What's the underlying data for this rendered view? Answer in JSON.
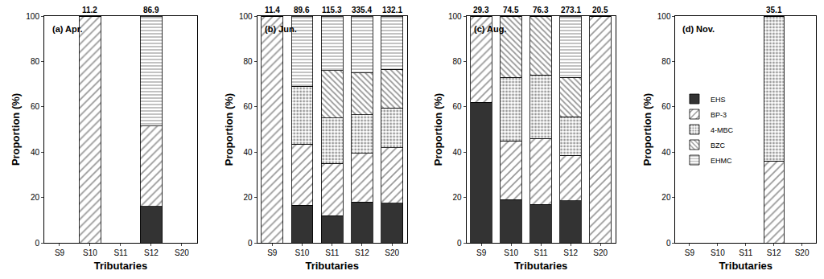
{
  "chart_data": [
    {
      "type": "bar",
      "stacked": true,
      "title": "(a) Apr.",
      "x_label": "Tributaries",
      "y_label": "Proportion (%)",
      "categories": [
        "S9",
        "S10",
        "S11",
        "S12",
        "S20"
      ],
      "ylim": [
        0,
        100
      ],
      "yticks": [
        0,
        20,
        40,
        60,
        80,
        100
      ],
      "series": [
        {
          "name": "EHS",
          "color": "#333333",
          "marker": "solid",
          "values": [
            0,
            0,
            0,
            16,
            0
          ]
        },
        {
          "name": "BP-3",
          "color": "#333333",
          "marker": "forward-hatch",
          "values": [
            0,
            100,
            0,
            35.5,
            0
          ]
        },
        {
          "name": "4-MBC",
          "color": "#333333",
          "marker": "dots",
          "values": [
            0,
            0,
            0,
            0,
            0
          ]
        },
        {
          "name": "BZC",
          "color": "#333333",
          "marker": "back-hatch",
          "values": [
            0,
            0,
            0,
            0,
            0
          ]
        },
        {
          "name": "EHMC",
          "color": "#333333",
          "marker": "horizontal-lines",
          "values": [
            0,
            0,
            0,
            48.5,
            0
          ]
        }
      ],
      "totals": [
        null,
        11.2,
        null,
        86.9,
        null
      ]
    },
    {
      "type": "bar",
      "stacked": true,
      "title": "(b) Jun.",
      "x_label": "Tributaries",
      "y_label": "Proportion (%)",
      "categories": [
        "S9",
        "S10",
        "S11",
        "S12",
        "S20"
      ],
      "ylim": [
        0,
        100
      ],
      "yticks": [
        0,
        20,
        40,
        60,
        80,
        100
      ],
      "series": [
        {
          "name": "EHS",
          "color": "#333333",
          "marker": "solid",
          "values": [
            0,
            16.5,
            12,
            18,
            17.5
          ]
        },
        {
          "name": "BP-3",
          "color": "#333333",
          "marker": "forward-hatch",
          "values": [
            100,
            27,
            23,
            21.5,
            24.5
          ]
        },
        {
          "name": "4-MBC",
          "color": "#333333",
          "marker": "dots",
          "values": [
            0,
            25.5,
            20,
            17,
            17.5
          ]
        },
        {
          "name": "BZC",
          "color": "#333333",
          "marker": "back-hatch",
          "values": [
            0,
            0,
            21,
            18.5,
            17
          ]
        },
        {
          "name": "EHMC",
          "color": "#333333",
          "marker": "horizontal-lines",
          "values": [
            0,
            31,
            24,
            25,
            23.5
          ]
        }
      ],
      "totals": [
        11.4,
        89.6,
        115.3,
        335.4,
        132.1
      ]
    },
    {
      "type": "bar",
      "stacked": true,
      "title": "(c) Aug.",
      "x_label": "Tributaries",
      "y_label": "Proportion (%)",
      "categories": [
        "S9",
        "S10",
        "S11",
        "S12",
        "S20"
      ],
      "ylim": [
        0,
        100
      ],
      "yticks": [
        0,
        20,
        40,
        60,
        80,
        100
      ],
      "series": [
        {
          "name": "EHS",
          "color": "#333333",
          "marker": "solid",
          "values": [
            62,
            19,
            17,
            18.5,
            0
          ]
        },
        {
          "name": "BP-3",
          "color": "#333333",
          "marker": "forward-hatch",
          "values": [
            38,
            26,
            29,
            20,
            100
          ]
        },
        {
          "name": "4-MBC",
          "color": "#333333",
          "marker": "dots",
          "values": [
            0,
            28,
            28,
            17,
            0
          ]
        },
        {
          "name": "BZC",
          "color": "#333333",
          "marker": "back-hatch",
          "values": [
            0,
            27,
            26,
            17.5,
            0
          ]
        },
        {
          "name": "EHMC",
          "color": "#333333",
          "marker": "horizontal-lines",
          "values": [
            0,
            0,
            0,
            27,
            0
          ]
        }
      ],
      "totals": [
        29.3,
        74.5,
        76.3,
        273.1,
        20.5
      ]
    },
    {
      "type": "bar",
      "stacked": true,
      "title": "(d) Nov.",
      "x_label": "Tributaries",
      "y_label": "Proportion (%)",
      "categories": [
        "S9",
        "S10",
        "S11",
        "S12",
        "S20"
      ],
      "ylim": [
        0,
        100
      ],
      "yticks": [
        0,
        20,
        40,
        60,
        80,
        100
      ],
      "legend": "left",
      "series": [
        {
          "name": "EHS",
          "color": "#333333",
          "marker": "solid",
          "values": [
            0,
            0,
            0,
            0,
            0
          ]
        },
        {
          "name": "BP-3",
          "color": "#333333",
          "marker": "forward-hatch",
          "values": [
            0,
            0,
            0,
            36,
            0
          ]
        },
        {
          "name": "4-MBC",
          "color": "#333333",
          "marker": "dots",
          "values": [
            0,
            0,
            0,
            64,
            0
          ]
        },
        {
          "name": "BZC",
          "color": "#333333",
          "marker": "back-hatch",
          "values": [
            0,
            0,
            0,
            0,
            0
          ]
        },
        {
          "name": "EHMC",
          "color": "#333333",
          "marker": "horizontal-lines",
          "values": [
            0,
            0,
            0,
            0,
            0
          ]
        }
      ],
      "totals": [
        null,
        null,
        null,
        35.1,
        null
      ]
    }
  ]
}
